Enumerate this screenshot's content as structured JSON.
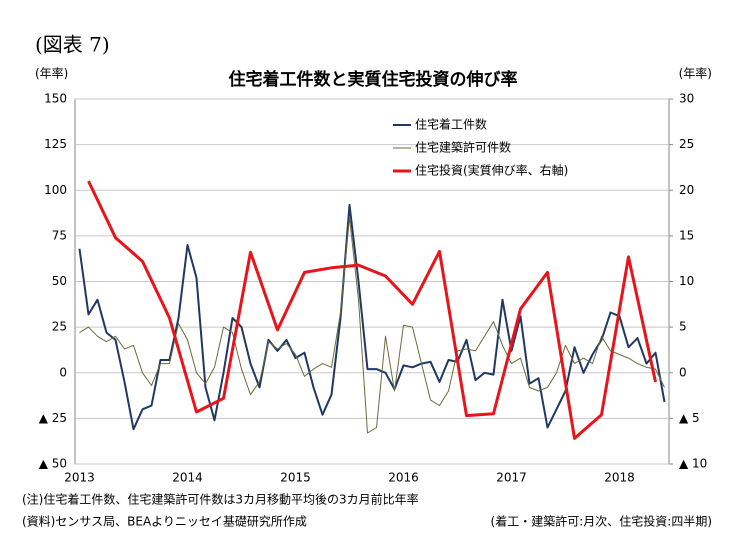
{
  "header": "(図表 7)",
  "chart_data": [
    {
      "type": "line",
      "title": "住宅着工件数と実質住宅投資の伸び率",
      "ylabel": "(年率)",
      "categories": [
        "2013",
        null,
        null,
        null,
        null,
        null,
        null,
        null,
        null,
        null,
        null,
        null,
        "2014",
        null,
        null,
        null,
        null,
        null,
        null,
        null,
        null,
        null,
        null,
        null,
        "2015",
        null,
        null,
        null,
        null,
        null,
        null,
        null,
        null,
        null,
        null,
        null,
        "2016",
        null,
        null,
        null,
        null,
        null,
        null,
        null,
        null,
        null,
        null,
        null,
        "2017",
        null,
        null,
        null,
        null,
        null,
        null,
        null,
        null,
        null,
        null,
        null,
        "2018",
        null,
        null,
        null,
        null,
        null
      ],
      "series": [
        {
          "name": "住宅着工件数",
          "color": "#1f3864",
          "values": [
            68,
            32,
            40,
            22,
            18,
            -5,
            -31,
            -20,
            -18,
            7,
            7,
            30,
            70,
            52,
            -8,
            -26,
            0,
            30,
            25,
            5,
            -8,
            18,
            12,
            18,
            8,
            11,
            -8,
            -23,
            -12,
            30,
            92,
            50,
            2,
            2,
            0,
            -9,
            4,
            3,
            5,
            6,
            -5,
            7,
            6,
            18,
            -4,
            0,
            -1,
            40,
            12,
            31,
            -6,
            -3,
            -30,
            -20,
            -10,
            14,
            0,
            10,
            18,
            33,
            31,
            14,
            19,
            5,
            11,
            -16
          ]
        },
        {
          "name": "住宅建築許可件数",
          "color": "#6b6b3a",
          "values": [
            22,
            25,
            20,
            17,
            20,
            13,
            15,
            0,
            -7,
            5,
            5,
            27,
            18,
            0,
            -6,
            3,
            25,
            22,
            2,
            -12,
            -5,
            17,
            13,
            16,
            10,
            -2,
            2,
            5,
            3,
            33,
            85,
            40,
            -33,
            -30,
            20,
            -10,
            26,
            25,
            5,
            -15,
            -18,
            -10,
            12,
            13,
            12,
            20,
            28,
            15,
            5,
            8,
            -8,
            -10,
            -8,
            0,
            15,
            5,
            8,
            5,
            20,
            12,
            10,
            8,
            5,
            3,
            2,
            -8
          ]
        }
      ],
      "ylim": [
        -50,
        150
      ],
      "yticks": [
        {
          "value": -50,
          "label": "▲ 50"
        },
        {
          "value": -25,
          "label": "▲ 25"
        },
        0,
        25,
        50,
        75,
        100,
        125,
        150
      ],
      "grid": true,
      "legend": "upper right"
    },
    {
      "type": "line",
      "y2label": "(年率)",
      "categories": [
        null,
        null,
        null,
        null,
        null,
        null,
        null,
        null,
        null,
        null,
        null,
        null,
        null,
        null,
        null,
        null,
        null,
        null,
        null,
        null,
        null,
        null
      ],
      "series": [
        {
          "name": "住宅投資(実質伸び率、右軸)",
          "color": "#e8141b",
          "axis": "y2",
          "values": [
            21,
            14.8,
            12.2,
            6,
            -4.3,
            -2.8,
            13.2,
            4.7,
            11,
            11.5,
            11.8,
            10.6,
            7.5,
            13.3,
            -4.7,
            -4.5,
            7,
            11,
            -7.2,
            -4.6,
            12.7,
            -1
          ]
        }
      ],
      "y2lim": [
        -10,
        30
      ],
      "y2ticks": [
        {
          "value": -10,
          "label": "▲ 10"
        },
        {
          "value": -5,
          "label": "▲ 5"
        },
        0,
        5,
        10,
        15,
        20,
        25,
        30
      ]
    }
  ],
  "notes": [
    "(注)住宅着工件数、住宅建築許可件数は3カ月移動平均後の3カ月前比年率",
    "(資料)センサス局、BEAよりニッセイ基礎研究所作成",
    "(着工・建築許可:月次、住宅投資:四半期)"
  ]
}
